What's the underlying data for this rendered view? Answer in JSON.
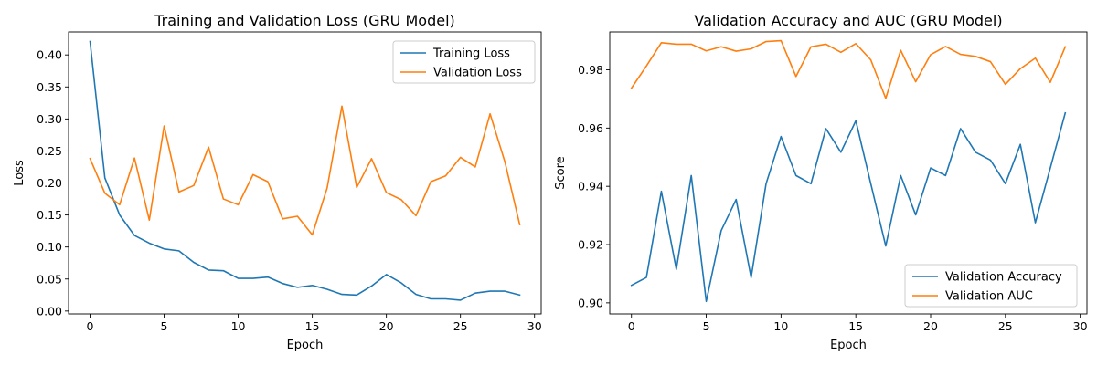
{
  "chart_data": [
    {
      "type": "line",
      "title": "Training and Validation Loss (GRU Model)",
      "xlabel": "Epoch",
      "ylabel": "Loss",
      "xlim": [
        -1.45,
        30.45
      ],
      "ylim": [
        -0.0045,
        0.4359
      ],
      "xticks": [
        0,
        5,
        10,
        15,
        20,
        25,
        30
      ],
      "xtick_labels": [
        "0",
        "5",
        "10",
        "15",
        "20",
        "25",
        "30"
      ],
      "yticks": [
        0.0,
        0.05,
        0.1,
        0.15,
        0.2,
        0.25,
        0.3,
        0.35,
        0.4
      ],
      "ytick_labels": [
        "0.00",
        "0.05",
        "0.10",
        "0.15",
        "0.20",
        "0.25",
        "0.30",
        "0.35",
        "0.40"
      ],
      "grid": false,
      "legend_position": "top-right",
      "x": [
        0,
        1,
        2,
        3,
        4,
        5,
        6,
        7,
        8,
        9,
        10,
        11,
        12,
        13,
        14,
        15,
        16,
        17,
        18,
        19,
        20,
        21,
        22,
        23,
        24,
        25,
        26,
        27,
        28,
        29
      ],
      "series": [
        {
          "name": "Training Loss",
          "color": "#1f77b4",
          "values": [
            0.421,
            0.208,
            0.15,
            0.118,
            0.106,
            0.097,
            0.094,
            0.076,
            0.064,
            0.063,
            0.051,
            0.051,
            0.053,
            0.043,
            0.037,
            0.04,
            0.034,
            0.026,
            0.025,
            0.039,
            0.057,
            0.044,
            0.026,
            0.019,
            0.019,
            0.017,
            0.028,
            0.031,
            0.031,
            0.025
          ]
        },
        {
          "name": "Validation Loss",
          "color": "#ff7f0e",
          "values": [
            0.238,
            0.184,
            0.166,
            0.239,
            0.142,
            0.289,
            0.186,
            0.196,
            0.256,
            0.175,
            0.166,
            0.213,
            0.202,
            0.144,
            0.148,
            0.119,
            0.192,
            0.32,
            0.193,
            0.238,
            0.185,
            0.174,
            0.149,
            0.202,
            0.211,
            0.24,
            0.225,
            0.308,
            0.233,
            0.135
          ]
        }
      ]
    },
    {
      "type": "line",
      "title": "Validation Accuracy and AUC (GRU Model)",
      "xlabel": "Epoch",
      "ylabel": "Score",
      "xlim": [
        -1.45,
        30.45
      ],
      "ylim": [
        0.8962,
        0.993
      ],
      "xticks": [
        0,
        5,
        10,
        15,
        20,
        25,
        30
      ],
      "xtick_labels": [
        "0",
        "5",
        "10",
        "15",
        "20",
        "25",
        "30"
      ],
      "yticks": [
        0.9,
        0.92,
        0.94,
        0.96,
        0.98
      ],
      "ytick_labels": [
        "0.90",
        "0.92",
        "0.94",
        "0.96",
        "0.98"
      ],
      "grid": false,
      "legend_position": "bottom-right",
      "x": [
        0,
        1,
        2,
        3,
        4,
        5,
        6,
        7,
        8,
        9,
        10,
        11,
        12,
        13,
        14,
        15,
        16,
        17,
        18,
        19,
        20,
        21,
        22,
        23,
        24,
        25,
        26,
        27,
        28,
        29
      ],
      "series": [
        {
          "name": "Validation Accuracy",
          "color": "#1f77b4",
          "values": [
            0.906,
            0.9087,
            0.9383,
            0.9115,
            0.9437,
            0.9005,
            0.9248,
            0.9355,
            0.9087,
            0.9409,
            0.9571,
            0.9437,
            0.9409,
            0.9598,
            0.9517,
            0.9625,
            0.9409,
            0.9195,
            0.9437,
            0.9302,
            0.9463,
            0.9437,
            0.9598,
            0.9517,
            0.949,
            0.9409,
            0.9544,
            0.9275,
            0.9463,
            0.9652
          ]
        },
        {
          "name": "Validation AUC",
          "color": "#ff7f0e",
          "values": [
            0.9737,
            0.9813,
            0.9893,
            0.9888,
            0.9888,
            0.9865,
            0.9879,
            0.9864,
            0.9872,
            0.9897,
            0.99,
            0.9777,
            0.9879,
            0.9888,
            0.986,
            0.989,
            0.9834,
            0.9702,
            0.9867,
            0.9759,
            0.9852,
            0.988,
            0.9853,
            0.9846,
            0.9828,
            0.975,
            0.9804,
            0.984,
            0.9757,
            0.9879
          ]
        }
      ]
    }
  ]
}
